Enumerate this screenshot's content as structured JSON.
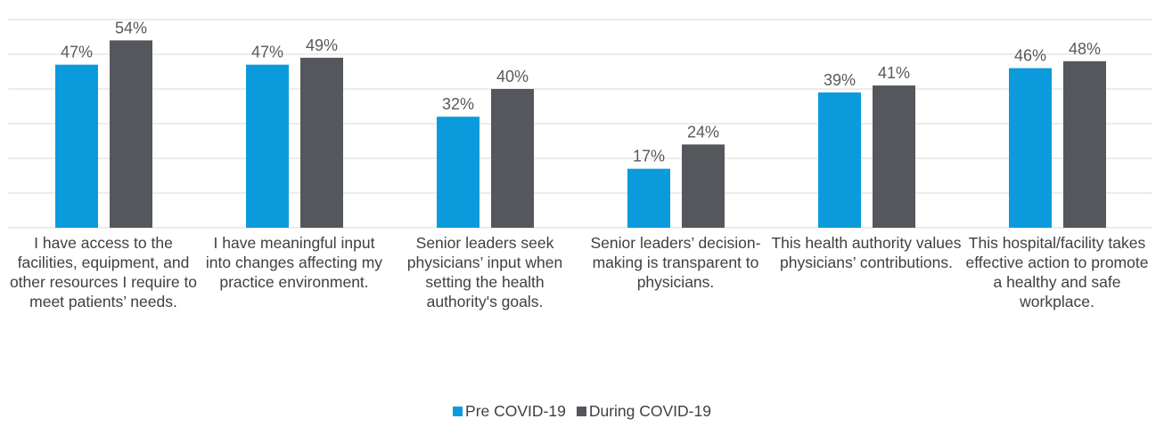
{
  "chart_data": {
    "type": "bar",
    "categories": [
      "I have access to the facilities, equipment, and other resources I require to meet patients’ needs.",
      "I have meaningful input into changes affecting my practice environment.",
      "Senior leaders seek physicians’ input when setting the health authority's goals.",
      "Senior leaders’ decision-making is transparent to physicians.",
      "This health authority values physicians’ contributions.",
      "This hospital/facility takes effective action to promote a healthy and safe workplace."
    ],
    "series": [
      {
        "name": "Pre COVID-19",
        "color": "#0b9bdc",
        "values": [
          47,
          47,
          32,
          17,
          39,
          46
        ],
        "value_labels": [
          "47%",
          "47%",
          "32%",
          "17%",
          "39%",
          "46%"
        ]
      },
      {
        "name": "During COVID-19",
        "color": "#54575b",
        "values": [
          54,
          49,
          40,
          24,
          41,
          48
        ],
        "value_labels": [
          "54%",
          "49%",
          "40%",
          "24%",
          "41%",
          "48%"
        ]
      }
    ],
    "ylim": [
      0,
      60
    ],
    "yticks": [
      0,
      10,
      20,
      30,
      40,
      50,
      60
    ],
    "grid": true,
    "legend": "bottom"
  }
}
